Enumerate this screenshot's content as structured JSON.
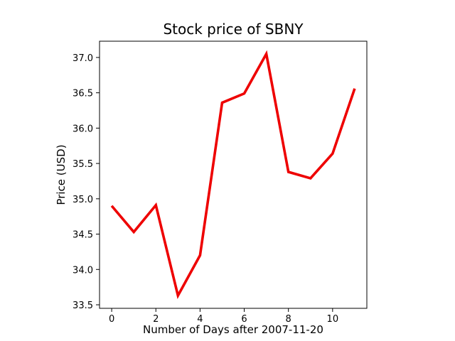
{
  "chart_data": {
    "type": "line",
    "title": "Stock price of SBNY",
    "xlabel": "Number of Days after 2007-11-20",
    "ylabel": "Price (USD)",
    "x": [
      0,
      1,
      2,
      3,
      4,
      5,
      6,
      7,
      8,
      9,
      10,
      11
    ],
    "series": [
      {
        "values": [
          34.9,
          34.53,
          34.91,
          33.63,
          34.2,
          36.36,
          36.49,
          37.05,
          35.38,
          35.29,
          35.64,
          36.56
        ],
        "color": "#ee0000"
      }
    ],
    "xlim": [
      -0.55,
      11.55
    ],
    "ylim": [
      33.45,
      37.23
    ],
    "xticks": [
      0,
      2,
      4,
      6,
      8,
      10
    ],
    "xtick_labels": [
      "0",
      "2",
      "4",
      "6",
      "8",
      "10"
    ],
    "yticks": [
      33.5,
      34.0,
      34.5,
      35.0,
      35.5,
      36.0,
      36.5,
      37.0
    ],
    "ytick_labels": [
      "33.5",
      "34.0",
      "34.5",
      "35.0",
      "35.5",
      "36.0",
      "36.5",
      "37.0"
    ],
    "grid": false,
    "legend": false
  }
}
